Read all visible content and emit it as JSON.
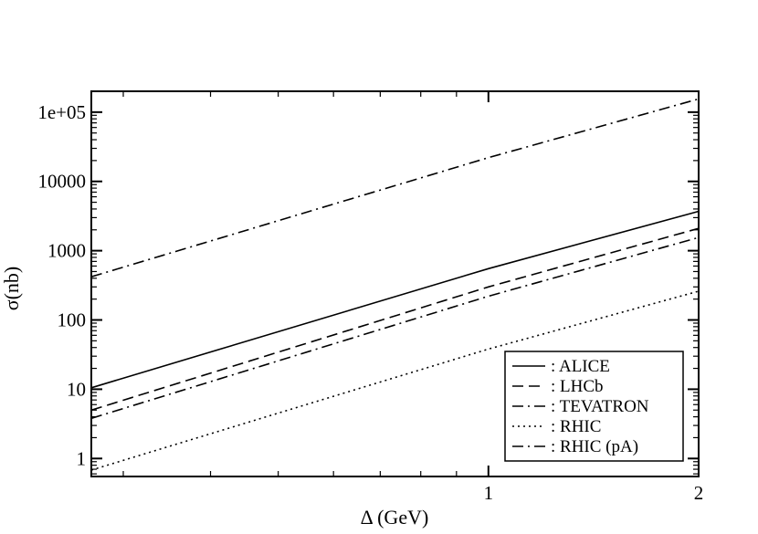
{
  "chart_data": {
    "type": "line",
    "title": "",
    "xlabel": "Δ (GeV)",
    "ylabel": "σ(nb)",
    "x_scale": "log",
    "y_scale": "log",
    "xlim": [
      0.27,
      2.0
    ],
    "ylim": [
      0.55,
      200000
    ],
    "grid": false,
    "legend_position": "bottom-right",
    "x_ticks": [
      {
        "value": 1,
        "label": "1"
      },
      {
        "value": 2,
        "label": "2"
      }
    ],
    "y_ticks": [
      {
        "value": 1,
        "label": "1"
      },
      {
        "value": 10,
        "label": "10"
      },
      {
        "value": 100,
        "label": "100"
      },
      {
        "value": 1000,
        "label": "1000"
      },
      {
        "value": 10000,
        "label": "10000"
      },
      {
        "value": 100000,
        "label": "1e+05"
      }
    ],
    "series": [
      {
        "name": ": ALICE",
        "dash": "solid",
        "x": [
          0.27,
          1.0,
          2.0
        ],
        "y": [
          10.5,
          550,
          3700
        ]
      },
      {
        "name": ": LHCb",
        "dash": "dash",
        "x": [
          0.27,
          1.0,
          2.0
        ],
        "y": [
          5.0,
          300,
          2100
        ]
      },
      {
        "name": ": TEVATRON",
        "dash": "dashdot",
        "x": [
          0.27,
          1.0,
          2.0
        ],
        "y": [
          3.8,
          220,
          1550
        ]
      },
      {
        "name": ": RHIC",
        "dash": "dot",
        "x": [
          0.27,
          1.0,
          2.0
        ],
        "y": [
          0.68,
          38,
          260
        ]
      },
      {
        "name": ": RHIC (pA)",
        "dash": "dashdot",
        "x": [
          0.27,
          1.0,
          2.0
        ],
        "y": [
          420,
          22000,
          155000
        ]
      }
    ]
  }
}
